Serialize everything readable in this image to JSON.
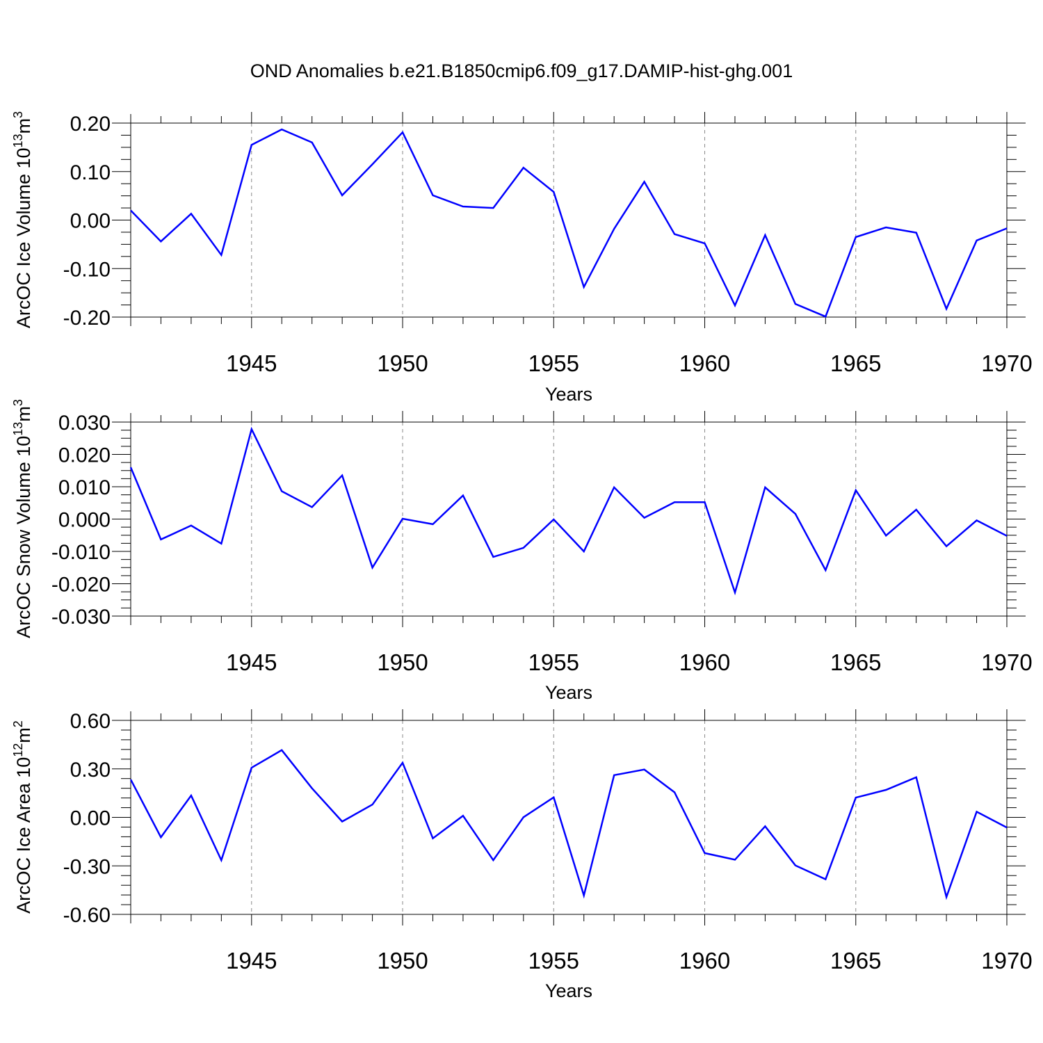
{
  "figure": {
    "title": "OND Anomalies b.e21.B1850cmip6.f09_g17.DAMIP-hist-ghg.001"
  },
  "chart_data": [
    {
      "type": "line",
      "title": "",
      "xlabel": "Years",
      "ylabel": "ArcOC Ice Volume 10",
      "ylabel_exponent": "13",
      "ylabel_unit": "m",
      "ylabel_unit_exponent": "3",
      "xlim": [
        1941,
        1970
      ],
      "ylim": [
        -0.2,
        0.2
      ],
      "x_ticks": [
        1945,
        1950,
        1955,
        1960,
        1965,
        1970
      ],
      "x_tick_labels": [
        "1945",
        "1950",
        "1955",
        "1960",
        "1965",
        "1970"
      ],
      "y_ticks": [
        -0.2,
        -0.1,
        0.0,
        0.1,
        0.2
      ],
      "y_tick_labels": [
        "-0.20",
        "-0.10",
        "0.00",
        "0.10",
        "0.20"
      ],
      "grid": "vertical dashed at major x ticks",
      "series": [
        {
          "color": "#0000ff",
          "x": [
            1941,
            1942,
            1943,
            1944,
            1945,
            1946,
            1947,
            1948,
            1949,
            1950,
            1951,
            1952,
            1953,
            1954,
            1955,
            1956,
            1957,
            1958,
            1959,
            1960,
            1961,
            1962,
            1963,
            1964,
            1965,
            1966,
            1967,
            1968,
            1969,
            1970
          ],
          "y": [
            0.02,
            -0.044,
            0.013,
            -0.072,
            0.155,
            0.187,
            0.16,
            0.051,
            0.115,
            0.181,
            0.051,
            0.028,
            0.025,
            0.108,
            0.058,
            -0.138,
            -0.018,
            0.079,
            -0.029,
            -0.048,
            -0.176,
            -0.031,
            -0.173,
            -0.199,
            -0.035,
            -0.015,
            -0.026,
            -0.183,
            -0.042,
            -0.017
          ]
        }
      ]
    },
    {
      "type": "line",
      "title": "",
      "xlabel": "Years",
      "ylabel": "ArcOC Snow Volume 10",
      "ylabel_exponent": "13",
      "ylabel_unit": "m",
      "ylabel_unit_exponent": "3",
      "xlim": [
        1941,
        1970
      ],
      "ylim": [
        -0.03,
        0.03
      ],
      "x_ticks": [
        1945,
        1950,
        1955,
        1960,
        1965,
        1970
      ],
      "x_tick_labels": [
        "1945",
        "1950",
        "1955",
        "1960",
        "1965",
        "1970"
      ],
      "y_ticks": [
        -0.03,
        -0.02,
        -0.01,
        0.0,
        0.01,
        0.02,
        0.03
      ],
      "y_tick_labels": [
        "-0.030",
        "-0.020",
        "-0.010",
        "0.000",
        "0.010",
        "0.020",
        "0.030"
      ],
      "grid": "vertical dashed at major x ticks",
      "series": [
        {
          "color": "#0000ff",
          "x": [
            1941,
            1942,
            1943,
            1944,
            1945,
            1946,
            1947,
            1948,
            1949,
            1950,
            1951,
            1952,
            1953,
            1954,
            1955,
            1956,
            1957,
            1958,
            1959,
            1960,
            1961,
            1962,
            1963,
            1964,
            1965,
            1966,
            1967,
            1968,
            1969,
            1970
          ],
          "y": [
            0.016,
            -0.0063,
            -0.002,
            -0.0076,
            0.0278,
            0.0086,
            0.0037,
            0.0135,
            -0.015,
            0.0001,
            -0.0016,
            0.0073,
            -0.0117,
            -0.0089,
            -0.0001,
            -0.01,
            0.0098,
            0.0004,
            0.0052,
            0.0052,
            -0.0227,
            0.0098,
            0.0016,
            -0.0158,
            0.0089,
            -0.0051,
            0.0029,
            -0.0084,
            -0.0004,
            -0.0052
          ]
        }
      ]
    },
    {
      "type": "line",
      "title": "",
      "xlabel": "Years",
      "ylabel": "ArcOC Ice Area 10",
      "ylabel_exponent": "12",
      "ylabel_unit": "m",
      "ylabel_unit_exponent": "2",
      "xlim": [
        1941,
        1970
      ],
      "ylim": [
        -0.6,
        0.6
      ],
      "x_ticks": [
        1945,
        1950,
        1955,
        1960,
        1965,
        1970
      ],
      "x_tick_labels": [
        "1945",
        "1950",
        "1955",
        "1960",
        "1965",
        "1970"
      ],
      "y_ticks": [
        -0.6,
        -0.3,
        0.0,
        0.3,
        0.6
      ],
      "y_tick_labels": [
        "-0.60",
        "-0.30",
        "0.00",
        "0.30",
        "0.60"
      ],
      "grid": "vertical dashed at major x ticks",
      "series": [
        {
          "color": "#0000ff",
          "x": [
            1941,
            1942,
            1943,
            1944,
            1945,
            1946,
            1947,
            1948,
            1949,
            1950,
            1951,
            1952,
            1953,
            1954,
            1955,
            1956,
            1957,
            1958,
            1959,
            1960,
            1961,
            1962,
            1963,
            1964,
            1965,
            1966,
            1967,
            1968,
            1969,
            1970
          ],
          "y": [
            0.234,
            -0.123,
            0.135,
            -0.265,
            0.307,
            0.416,
            0.18,
            -0.026,
            0.079,
            0.338,
            -0.13,
            0.01,
            -0.265,
            0.001,
            0.124,
            -0.483,
            0.261,
            0.296,
            0.155,
            -0.221,
            -0.262,
            -0.055,
            -0.297,
            -0.383,
            0.122,
            0.17,
            0.248,
            -0.493,
            0.035,
            -0.063
          ]
        }
      ]
    }
  ]
}
